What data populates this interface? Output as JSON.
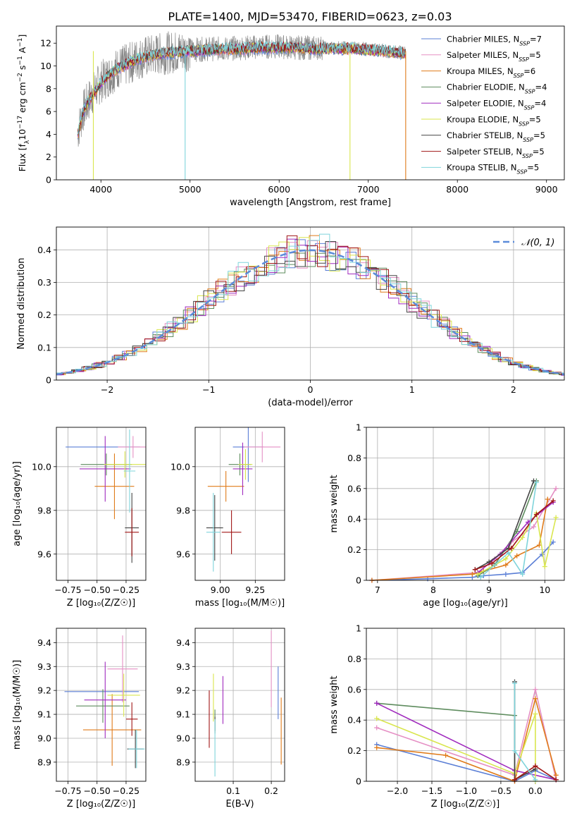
{
  "figure": {
    "title": "PLATE=1400, MJD=53470, FIBERID=0623, z=0.03"
  },
  "legend_spectrum": [
    {
      "base": "Chabrier MILES, N",
      "sub": "SSP",
      "tail": "=7",
      "color": "#5B7FD6"
    },
    {
      "base": "Salpeter MILES, N",
      "sub": "SSP",
      "tail": "=5",
      "color": "#E58FC4"
    },
    {
      "base": "Kroupa MILES, N",
      "sub": "SSP",
      "tail": "=6",
      "color": "#E07B1A"
    },
    {
      "base": "Chabrier ELODIE, N",
      "sub": "SSP",
      "tail": "=4",
      "color": "#5E8C5E"
    },
    {
      "base": "Salpeter ELODIE, N",
      "sub": "SSP",
      "tail": "=4",
      "color": "#A02BBE"
    },
    {
      "base": "Kroupa ELODIE, N",
      "sub": "SSP",
      "tail": "=5",
      "color": "#D9E64E"
    },
    {
      "base": "Chabrier STELIB, N",
      "sub": "SSP",
      "tail": "=5",
      "color": "#444444"
    },
    {
      "base": "Salpeter STELIB, N",
      "sub": "SSP",
      "tail": "=5",
      "color": "#A01515"
    },
    {
      "base": "Kroupa STELIB, N",
      "sub": "SSP",
      "tail": "=5",
      "color": "#7FD4DB"
    }
  ],
  "legend_hist": {
    "label": "𝒩(0, 1)",
    "color": "#5B8BD9"
  },
  "chart_data": [
    {
      "id": "spectrum",
      "type": "line",
      "title": "PLATE=1400, MJD=53470, FIBERID=0623, z=0.03",
      "xlabel": "wavelength [Angstrom, rest frame]",
      "ylabel_parts": [
        "Flux [f",
        "λ",
        "10",
        "−17",
        " erg cm",
        "−2",
        " s",
        "−1",
        " A",
        "−1",
        "]"
      ],
      "xlim": [
        3500,
        9200
      ],
      "ylim": [
        0,
        13.5
      ],
      "xticks": [
        4000,
        5000,
        6000,
        7000,
        8000,
        9000
      ],
      "yticks": [
        0,
        2,
        4,
        6,
        8,
        10,
        12
      ],
      "data_range": [
        3740,
        7420
      ],
      "series": [
        {
          "name": "data",
          "color": "#888888",
          "x": [
            3740,
            3800,
            3900,
            4000,
            4100,
            4200,
            4300,
            4400,
            4600,
            4800,
            5000,
            5200,
            5400,
            5600,
            5800,
            6000,
            6200,
            6400,
            6600,
            6800,
            7000,
            7200,
            7400
          ],
          "y": [
            4.2,
            6.0,
            7.5,
            8.6,
            9.2,
            9.9,
            10.1,
            10.6,
            11.0,
            11.2,
            11.4,
            11.5,
            11.5,
            11.6,
            11.7,
            11.7,
            11.6,
            11.6,
            11.6,
            11.6,
            11.5,
            11.3,
            11.2
          ]
        },
        {
          "name": "model",
          "color": "#7FD4DB",
          "x": [
            3740,
            3800,
            3900,
            4000,
            4100,
            4200,
            4300,
            4400,
            4600,
            4800,
            5000,
            5200,
            5400,
            5600,
            5800,
            6000,
            6200,
            6400,
            6600,
            6800,
            7000,
            7200,
            7400
          ],
          "y": [
            4.0,
            6.0,
            7.4,
            8.5,
            9.3,
            9.8,
            10.2,
            10.6,
            11.0,
            11.2,
            11.3,
            11.4,
            11.5,
            11.5,
            11.6,
            11.6,
            11.6,
            11.5,
            11.5,
            11.5,
            11.4,
            11.3,
            11.1
          ]
        }
      ]
    },
    {
      "id": "residual_hist",
      "type": "bar",
      "xlabel": "(data-model)/error",
      "ylabel": "Normed distribution",
      "xlim": [
        -2.5,
        2.5
      ],
      "ylim": [
        0,
        0.47
      ],
      "xticks": [
        -2,
        -1,
        0,
        1,
        2
      ],
      "yticks": [
        0.0,
        0.1,
        0.2,
        0.3,
        0.4
      ],
      "grid": true,
      "bin_width": 0.1,
      "reference": {
        "name": "𝒩(0,1)",
        "mu": 0,
        "sigma": 1
      }
    },
    {
      "id": "z_vs_age",
      "type": "scatter",
      "xlabel": "Z [log₁₀(Z/Z☉)]",
      "ylabel": "age  [log₁₀(age/yr)]",
      "xlim": [
        -0.85,
        -0.08
      ],
      "ylim": [
        9.48,
        10.18
      ],
      "xticks": [
        -0.75,
        -0.5,
        -0.25
      ],
      "xticklabels": [
        "−0.75",
        "−0.50",
        "−0.25"
      ],
      "yticks": [
        9.6,
        9.8,
        10.0
      ],
      "yticklabels": [
        "9.6",
        "9.8",
        "10.0"
      ],
      "grid": true,
      "points": [
        {
          "x": -0.45,
          "xe": 0.32,
          "y": 10.09,
          "ye": 0.0,
          "c": "#5B7FD6"
        },
        {
          "x": -0.19,
          "xe": 0.13,
          "y": 10.09,
          "ye": 0.05,
          "c": "#E58FC4"
        },
        {
          "x": -0.35,
          "xe": 0.17,
          "y": 9.91,
          "ye": 0.15,
          "c": "#E07B1A"
        },
        {
          "x": -0.42,
          "xe": 0.22,
          "y": 10.01,
          "ye": 0.05,
          "c": "#5E8C5E"
        },
        {
          "x": -0.43,
          "xe": 0.22,
          "y": 9.99,
          "ye": 0.15,
          "c": "#A02BBE"
        },
        {
          "x": -0.26,
          "xe": 0.18,
          "y": 10.01,
          "ye": 0.06,
          "c": "#D9E64E"
        },
        {
          "x": -0.2,
          "xe": 0.06,
          "y": 9.72,
          "ye": 0.16,
          "c": "#444444"
        },
        {
          "x": -0.2,
          "xe": 0.06,
          "y": 9.7,
          "ye": 0.11,
          "c": "#A01515"
        },
        {
          "x": -0.22,
          "xe": 0.05,
          "y": 9.98,
          "ye": 0.19,
          "c": "#7FD4DB"
        }
      ]
    },
    {
      "id": "mass_vs_age",
      "type": "scatter",
      "xlabel": "mass [log₁₀(M/M☉)]",
      "ylabel": "",
      "xlim": [
        8.82,
        9.46
      ],
      "ylim": [
        9.48,
        10.18
      ],
      "xticks": [
        9.0,
        9.25
      ],
      "xticklabels": [
        "9.00",
        "9.25"
      ],
      "yticks": [
        9.6,
        9.8,
        10.0
      ],
      "yticklabels": [
        "9.6",
        "9.8",
        "10.0"
      ],
      "grid": true,
      "points": [
        {
          "x": 9.2,
          "xe": 0.11,
          "y": 10.09,
          "ye": 0.16,
          "c": "#5B7FD6"
        },
        {
          "x": 9.3,
          "xe": 0.13,
          "y": 10.09,
          "ye": 0.07,
          "c": "#E58FC4"
        },
        {
          "x": 9.04,
          "xe": 0.13,
          "y": 9.91,
          "ye": 0.07,
          "c": "#E07B1A"
        },
        {
          "x": 9.14,
          "xe": 0.08,
          "y": 10.01,
          "ye": 0.05,
          "c": "#5E8C5E"
        },
        {
          "x": 9.16,
          "xe": 0.07,
          "y": 9.99,
          "ye": 0.12,
          "c": "#A02BBE"
        },
        {
          "x": 9.18,
          "xe": 0.05,
          "y": 10.01,
          "ye": 0.07,
          "c": "#D9E64E"
        },
        {
          "x": 8.96,
          "xe": 0.06,
          "y": 9.72,
          "ye": 0.15,
          "c": "#444444"
        },
        {
          "x": 9.08,
          "xe": 0.07,
          "y": 9.7,
          "ye": 0.1,
          "c": "#A01515"
        },
        {
          "x": 8.95,
          "xe": 0.05,
          "y": 9.7,
          "ye": 0.18,
          "c": "#7FD4DB"
        }
      ]
    },
    {
      "id": "age_weights",
      "type": "line",
      "xlabel": "age  [log₁₀(age/yr)]",
      "ylabel": "mass weight",
      "xlim": [
        6.8,
        10.35
      ],
      "ylim": [
        0,
        1.0
      ],
      "xticks": [
        7,
        8,
        9,
        10
      ],
      "yticks": [
        0.0,
        0.2,
        0.4,
        0.6,
        0.8,
        1.0
      ],
      "grid": true,
      "series": [
        {
          "color": "#5B7FD6",
          "x": [
            6.9,
            7.9,
            8.7,
            8.9,
            9.3,
            9.6,
            9.95,
            10.15
          ],
          "y": [
            0.0,
            0.01,
            0.02,
            0.03,
            0.04,
            0.05,
            0.17,
            0.25
          ]
        },
        {
          "color": "#E58FC4",
          "x": [
            6.9,
            8.8,
            9.1,
            9.4,
            9.8,
            10.2
          ],
          "y": [
            0.0,
            0.05,
            0.14,
            0.25,
            0.35,
            0.6
          ]
        },
        {
          "color": "#E07B1A",
          "x": [
            6.9,
            8.7,
            8.9,
            9.3,
            9.5,
            9.9,
            10.05
          ],
          "y": [
            0.0,
            0.04,
            0.06,
            0.1,
            0.16,
            0.23,
            0.53
          ]
        },
        {
          "color": "#5E8C5E",
          "x": [
            8.8,
            9.1,
            9.5,
            9.85
          ],
          "y": [
            0.03,
            0.1,
            0.32,
            0.65
          ]
        },
        {
          "color": "#A02BBE",
          "x": [
            8.8,
            9.2,
            9.7,
            10.15
          ],
          "y": [
            0.05,
            0.17,
            0.38,
            0.51
          ]
        },
        {
          "color": "#D9E64E",
          "x": [
            8.8,
            9.3,
            9.6,
            9.85,
            10.0,
            10.2
          ],
          "y": [
            0.04,
            0.14,
            0.28,
            0.44,
            0.09,
            0.41
          ]
        },
        {
          "color": "#444444",
          "x": [
            8.75,
            9.0,
            9.35,
            9.8
          ],
          "y": [
            0.07,
            0.12,
            0.21,
            0.65
          ]
        },
        {
          "color": "#A01515",
          "x": [
            8.75,
            9.05,
            9.4,
            9.85,
            10.15
          ],
          "y": [
            0.07,
            0.11,
            0.21,
            0.43,
            0.52
          ]
        },
        {
          "color": "#7FD4DB",
          "x": [
            8.85,
            9.35,
            9.6,
            9.85
          ],
          "y": [
            0.02,
            0.18,
            0.04,
            0.64
          ]
        }
      ]
    },
    {
      "id": "z_vs_mass",
      "type": "scatter",
      "xlabel": "Z [log₁₀(Z/Z☉)]",
      "ylabel": "mass [log₁₀(M/M☉)]",
      "xlim": [
        -0.85,
        -0.08
      ],
      "ylim": [
        8.82,
        9.46
      ],
      "xticks": [
        -0.75,
        -0.5,
        -0.25
      ],
      "xticklabels": [
        "−0.75",
        "−0.50",
        "−0.25"
      ],
      "yticks": [
        8.9,
        9.0,
        9.1,
        9.2,
        9.3,
        9.4
      ],
      "yticklabels": [
        "8.9",
        "9.0",
        "9.1",
        "9.2",
        "9.3",
        "9.4"
      ],
      "grid": true,
      "points": [
        {
          "x": -0.46,
          "xe": 0.32,
          "y": 9.195,
          "ye": 0.0,
          "c": "#5B7FD6"
        },
        {
          "x": -0.28,
          "xe": 0.13,
          "y": 9.29,
          "ye": 0.14,
          "c": "#E58FC4"
        },
        {
          "x": -0.37,
          "xe": 0.25,
          "y": 9.035,
          "ye": 0.15,
          "c": "#E07B1A"
        },
        {
          "x": -0.45,
          "xe": 0.23,
          "y": 9.135,
          "ye": 0.07,
          "c": "#5E8C5E"
        },
        {
          "x": -0.43,
          "xe": 0.18,
          "y": 9.16,
          "ye": 0.16,
          "c": "#A02BBE"
        },
        {
          "x": -0.27,
          "xe": 0.14,
          "y": 9.18,
          "ye": 0.09,
          "c": "#D9E64E"
        },
        {
          "x": -0.17,
          "xe": 0.07,
          "y": 8.955,
          "ye": 0.08,
          "c": "#444444"
        },
        {
          "x": -0.2,
          "xe": 0.05,
          "y": 9.08,
          "ye": 0.07,
          "c": "#A01515"
        },
        {
          "x": -0.16,
          "xe": 0.07,
          "y": 8.955,
          "ye": 0.08,
          "c": "#7FD4DB"
        }
      ]
    },
    {
      "id": "ebv_vs_mass",
      "type": "scatter",
      "xlabel": "E(B-V)",
      "ylabel": "",
      "xlim": [
        0.0,
        0.235
      ],
      "ylim": [
        8.82,
        9.46
      ],
      "xticks": [
        0.1,
        0.2
      ],
      "xticklabels": [
        "0.1",
        "0.2"
      ],
      "yticks": [
        8.9,
        9.0,
        9.1,
        9.2,
        9.3,
        9.4
      ],
      "yticklabels": [
        "8.9",
        "9.0",
        "9.1",
        "9.2",
        "9.3",
        "9.4"
      ],
      "grid": true,
      "points": [
        {
          "x": 0.218,
          "xe": 0,
          "y": 9.19,
          "ye": 0.11,
          "c": "#5B7FD6"
        },
        {
          "x": 0.2,
          "xe": 0,
          "y": 9.29,
          "ye": 0.16,
          "c": "#E58FC4"
        },
        {
          "x": 0.226,
          "xe": 0,
          "y": 9.03,
          "ye": 0.14,
          "c": "#E07B1A"
        },
        {
          "x": 0.052,
          "xe": 0,
          "y": 9.07,
          "ye": 0.05,
          "c": "#5E8C5E"
        },
        {
          "x": 0.073,
          "xe": 0,
          "y": 9.16,
          "ye": 0.1,
          "c": "#A02BBE"
        },
        {
          "x": 0.048,
          "xe": 0,
          "y": 9.17,
          "ye": 0.1,
          "c": "#D9E64E"
        },
        {
          "x": 0.052,
          "xe": 0,
          "y": 9.06,
          "ye": 0.03,
          "c": "#444444"
        },
        {
          "x": 0.037,
          "xe": 0,
          "y": 9.08,
          "ye": 0.12,
          "c": "#A01515"
        },
        {
          "x": 0.052,
          "xe": 0,
          "y": 8.96,
          "ye": 0.12,
          "c": "#7FD4DB"
        }
      ]
    },
    {
      "id": "z_weights",
      "type": "line",
      "xlabel": "Z [log₁₀(Z/Z☉)]",
      "ylabel": "mass weight",
      "xlim": [
        -2.45,
        0.42
      ],
      "ylim": [
        0,
        1.0
      ],
      "xticks": [
        -2.0,
        -1.5,
        -1.0,
        -0.5,
        0.0
      ],
      "xticklabels": [
        "−2.0",
        "−1.5",
        "−1.0",
        "−0.5",
        "0.0"
      ],
      "yticks": [
        0.0,
        0.2,
        0.4,
        0.6,
        0.8,
        1.0
      ],
      "grid": true,
      "series": [
        {
          "color": "#5B7FD6",
          "x": [
            -2.3,
            -0.3,
            0.0,
            0.3
          ],
          "y": [
            0.24,
            0.0,
            0.07,
            0.01
          ]
        },
        {
          "color": "#E58FC4",
          "x": [
            -2.3,
            -0.3,
            0.0,
            0.3
          ],
          "y": [
            0.35,
            0.04,
            0.6,
            0.01
          ]
        },
        {
          "color": "#E07B1A",
          "x": [
            -2.3,
            -1.3,
            -0.3,
            0.0,
            0.3
          ],
          "y": [
            0.22,
            0.17,
            0.0,
            0.54,
            0.04
          ]
        },
        {
          "color": "#5E8C5E",
          "x": [
            -2.3,
            -0.3,
            -0.3
          ],
          "y": [
            0.51,
            0.43,
            0.01
          ]
        },
        {
          "color": "#A02BBE",
          "x": [
            -2.3,
            -0.3,
            0.3
          ],
          "y": [
            0.51,
            0.07,
            0.01
          ]
        },
        {
          "color": "#D9E64E",
          "x": [
            -2.3,
            -0.3,
            0.0,
            0.0
          ],
          "y": [
            0.41,
            0.05,
            0.44,
            0.0
          ]
        },
        {
          "color": "#444444",
          "x": [
            -0.3,
            -0.3,
            0.0
          ],
          "y": [
            0.65,
            0.01,
            0.08
          ]
        },
        {
          "color": "#A01515",
          "x": [
            -0.3,
            0.0,
            0.3
          ],
          "y": [
            0.01,
            0.1,
            0.01
          ]
        },
        {
          "color": "#7FD4DB",
          "x": [
            -0.3,
            -0.3,
            0.0
          ],
          "y": [
            0.64,
            0.2,
            0.01
          ]
        }
      ]
    }
  ]
}
